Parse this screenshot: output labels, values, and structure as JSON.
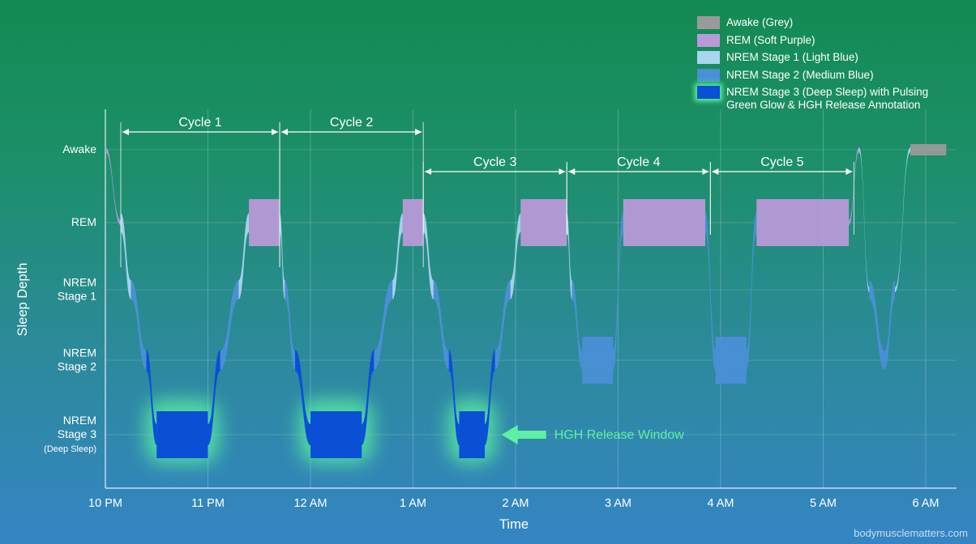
{
  "chart_data": {
    "type": "line",
    "title": "",
    "xlabel": "Time",
    "ylabel": "Sleep Depth",
    "x_ticks": [
      "10 PM",
      "11 PM",
      "12 AM",
      "1 AM",
      "2 AM",
      "3 AM",
      "4 AM",
      "5 AM",
      "6 AM"
    ],
    "x_tick_values": [
      22,
      23,
      24,
      25,
      26,
      27,
      28,
      29,
      30
    ],
    "y_levels": [
      {
        "label": "Awake",
        "lines": [
          "Awake"
        ],
        "value": 0
      },
      {
        "label": "REM",
        "lines": [
          "REM"
        ],
        "value": 1
      },
      {
        "label": "NREM Stage 1",
        "lines": [
          "NREM",
          "Stage 1"
        ],
        "value": 2
      },
      {
        "label": "NREM Stage 2",
        "lines": [
          "NREM",
          "Stage 2"
        ],
        "value": 3
      },
      {
        "label": "NREM Stage 3 (Deep Sleep)",
        "lines": [
          "NREM",
          "Stage 3",
          "(Deep Sleep)"
        ],
        "value": 4
      }
    ],
    "xlim": [
      22,
      30.3
    ],
    "grid": true,
    "legend_position": "top-right",
    "legend": [
      {
        "label": "Awake (Grey)",
        "color": "#9a9a9a",
        "glow": false
      },
      {
        "label": "REM (Soft Purple)",
        "color": "#b89ad8",
        "glow": false
      },
      {
        "label": "NREM Stage 1 (Light Blue)",
        "color": "#a8d6ef",
        "glow": false
      },
      {
        "label": "NREM Stage 2 (Medium Blue)",
        "color": "#4a90d6",
        "glow": false
      },
      {
        "label": "NREM Stage 3 (Deep Sleep) with Pulsing Green Glow & HGH Release Annotation",
        "lines": [
          "NREM Stage 3 (Deep Sleep) with Pulsing",
          "Green Glow & HGH Release Annotation"
        ],
        "color": "#0a4fd6",
        "glow": true
      }
    ],
    "hypnogram": [
      [
        22.0,
        0
      ],
      [
        22.15,
        1
      ],
      [
        22.25,
        2
      ],
      [
        22.4,
        3
      ],
      [
        22.5,
        4
      ],
      [
        23.0,
        4
      ],
      [
        23.12,
        3
      ],
      [
        23.3,
        2
      ],
      [
        23.4,
        1
      ],
      [
        23.7,
        1
      ],
      [
        23.75,
        2
      ],
      [
        23.85,
        3
      ],
      [
        24.0,
        4
      ],
      [
        24.5,
        4
      ],
      [
        24.62,
        3
      ],
      [
        24.8,
        2
      ],
      [
        24.9,
        1
      ],
      [
        25.1,
        1
      ],
      [
        25.2,
        2
      ],
      [
        25.35,
        3
      ],
      [
        25.45,
        4
      ],
      [
        25.7,
        4
      ],
      [
        25.8,
        3
      ],
      [
        25.95,
        2
      ],
      [
        26.05,
        1
      ],
      [
        26.5,
        1
      ],
      [
        26.55,
        2
      ],
      [
        26.65,
        3
      ],
      [
        26.95,
        3
      ],
      [
        27.05,
        1
      ],
      [
        27.85,
        1
      ],
      [
        27.95,
        3
      ],
      [
        28.25,
        3
      ],
      [
        28.35,
        1
      ],
      [
        29.25,
        1
      ],
      [
        29.35,
        0
      ],
      [
        29.45,
        2
      ],
      [
        29.6,
        3
      ],
      [
        29.7,
        2
      ],
      [
        29.85,
        0
      ],
      [
        30.2,
        0
      ]
    ],
    "cycles": [
      {
        "label": "Cycle 1",
        "start": 22.15,
        "end": 23.7
      },
      {
        "label": "Cycle 2",
        "start": 23.7,
        "end": 25.1
      },
      {
        "label": "Cycle 3",
        "start": 25.1,
        "end": 26.5
      },
      {
        "label": "Cycle 4",
        "start": 26.5,
        "end": 27.9
      },
      {
        "label": "Cycle 5",
        "start": 27.9,
        "end": 29.3
      }
    ],
    "annotations": [
      {
        "label": "HGH Release Window",
        "x": 25.8,
        "y": 4
      }
    ],
    "colors": {
      "awake": "#9a9a9a",
      "rem": "#b89ad8",
      "nrem1": "#a8d6ef",
      "nrem2": "#4a90d6",
      "nrem3": "#0a4fd6",
      "glow": "#5df5a0",
      "annotation": "#5ff0a4"
    }
  },
  "watermark": "bodymusclematters.com"
}
